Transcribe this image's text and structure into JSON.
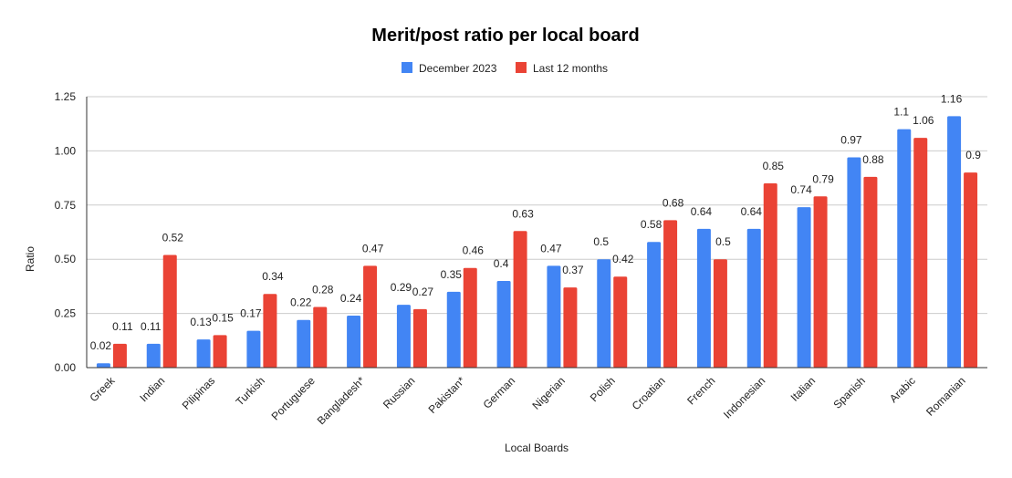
{
  "chart_data": {
    "type": "bar",
    "title": "Merit/post ratio per local board",
    "xlabel": "Local Boards",
    "ylabel": "Ratio",
    "ylim": [
      0,
      1.25
    ],
    "yticks": [
      "0.00",
      "0.25",
      "0.50",
      "0.75",
      "1.00",
      "1.25"
    ],
    "grid": true,
    "legend_position": "top",
    "categories": [
      "Greek",
      "Indian",
      "Pilipinas",
      "Turkish",
      "Portuguese",
      "Bangladesh*",
      "Russian",
      "Pakistan*",
      "German",
      "Nigerian",
      "Polish",
      "Croatian",
      "French",
      "Indonesian",
      "Italian",
      "Spanish",
      "Arabic",
      "Romanian"
    ],
    "series": [
      {
        "name": "December 2023",
        "color": "#4285f4",
        "values": [
          0.02,
          0.11,
          0.13,
          0.17,
          0.22,
          0.24,
          0.29,
          0.35,
          0.4,
          0.47,
          0.5,
          0.58,
          0.64,
          0.64,
          0.74,
          0.97,
          1.1,
          1.16
        ]
      },
      {
        "name": "Last 12 months",
        "color": "#ea4335",
        "values": [
          0.11,
          0.52,
          0.15,
          0.34,
          0.28,
          0.47,
          0.27,
          0.46,
          0.63,
          0.37,
          0.42,
          0.68,
          0.5,
          0.85,
          0.79,
          0.88,
          1.06,
          0.9
        ]
      }
    ]
  }
}
